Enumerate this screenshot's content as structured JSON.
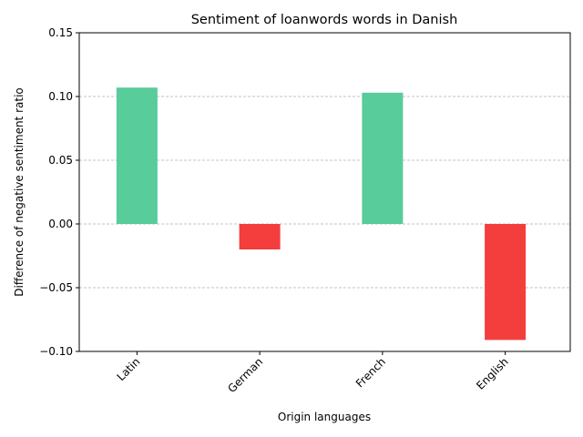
{
  "chart_data": {
    "type": "bar",
    "title": "Sentiment of loanwords words in Danish",
    "xlabel": "Origin languages",
    "ylabel": "Difference of negative sentiment ratio",
    "categories": [
      "Latin",
      "German",
      "French",
      "English"
    ],
    "values": [
      0.107,
      -0.02,
      0.103,
      -0.091
    ],
    "ylim": [
      -0.1,
      0.15
    ],
    "yticks": [
      "−0.10",
      "−0.05",
      "0.00",
      "0.05",
      "0.10",
      "0.15"
    ],
    "ytick_values": [
      -0.1,
      -0.05,
      0.0,
      0.05,
      0.1,
      0.15
    ],
    "grid": "horizontal, dashed",
    "colors": {
      "positive": "#58cc9a",
      "negative": "#f43d3d",
      "grid": "#b0b0b0"
    }
  }
}
